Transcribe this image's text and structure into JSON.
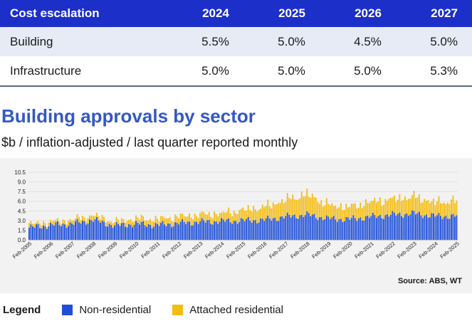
{
  "table": {
    "headers": [
      "Cost escalation",
      "2024",
      "2025",
      "2026",
      "2027"
    ],
    "rows": [
      {
        "label": "Building",
        "values": [
          "5.5%",
          "5.0%",
          "4.5%",
          "5.0%"
        ]
      },
      {
        "label": "Infrastructure",
        "values": [
          "5.0%",
          "5.0%",
          "5.0%",
          "5.3%"
        ]
      }
    ]
  },
  "chart_title": "Building approvals by sector",
  "chart_subtitle": "$b / inflation-adjusted / last quarter reported monthly",
  "source": "Source: ABS, WT",
  "legend": {
    "title": "Legend",
    "items": [
      {
        "label": "Non-residential",
        "color": "#1e4fd8"
      },
      {
        "label": "Attached residential",
        "color": "#f5bd12"
      }
    ]
  },
  "chart_data": {
    "type": "bar",
    "stacked": true,
    "ylim": [
      0,
      10.5
    ],
    "yticks": [
      "0.0",
      "1.5",
      "3.0",
      "4.5",
      "6.0",
      "7.5",
      "9.0",
      "10.5"
    ],
    "xticks": [
      "Feb-2005",
      "Feb-2006",
      "Feb-2007",
      "Feb-2008",
      "Feb-2009",
      "Feb-2010",
      "Feb-2011",
      "Feb-2012",
      "Feb-2013",
      "Feb-2014",
      "Feb-2015",
      "Feb-2016",
      "Feb-2017",
      "Feb-2018",
      "Feb-2019",
      "Feb-2020",
      "Feb-2021",
      "Feb-2022",
      "Feb-2023",
      "Feb-2024",
      "Feb-2025"
    ],
    "series": [
      {
        "name": "Non-residential",
        "color": "#1e4fd8",
        "annual_values": [
          1.9,
          2.3,
          2.5,
          3.1,
          2.2,
          2.5,
          2.3,
          2.6,
          2.8,
          2.9,
          3.0,
          3.1,
          3.6,
          3.9,
          3.3,
          3.2,
          3.6,
          3.9,
          4.1,
          3.7,
          3.7
        ]
      },
      {
        "name": "Attached residential",
        "color": "#f5bd12",
        "annual_values": [
          0.5,
          0.5,
          0.6,
          0.7,
          0.6,
          0.8,
          0.9,
          1.0,
          1.1,
          1.2,
          1.6,
          2.0,
          2.6,
          3.2,
          2.1,
          1.9,
          2.3,
          2.4,
          2.6,
          2.1,
          2.4
        ]
      }
    ]
  }
}
